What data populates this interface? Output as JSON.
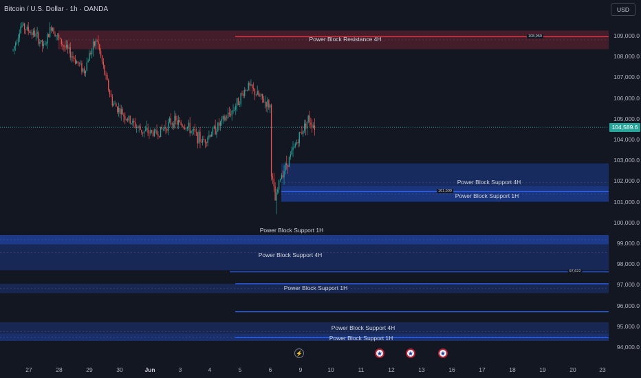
{
  "chart_title": "Bitcoin / U.S. Dollar · 1h · OANDA",
  "currency_button": "USD",
  "current_price": "104,589.6",
  "y_ticks": [
    "109,000.0",
    "108,000.0",
    "107,000.0",
    "106,000.0",
    "105,000.0",
    "104,000.0",
    "103,000.0",
    "102,000.0",
    "101,000.0",
    "100,000.0",
    "99,000.0",
    "98,000.0",
    "97,000.0",
    "96,000.0",
    "95,000.0",
    "94,000.0"
  ],
  "x_ticks": [
    "27",
    "28",
    "29",
    "30",
    "Jun",
    "3",
    "4",
    "5",
    "6",
    "9",
    "10",
    "11",
    "12",
    "13",
    "16",
    "17",
    "18",
    "19",
    "20",
    "23"
  ],
  "zones": [
    {
      "label": "Power Block Resistance  4H",
      "low": 108350,
      "high": 109250
    },
    {
      "label": "Power Block Support 4H",
      "low": 101000,
      "high": 102850
    },
    {
      "label": "Power Block Support 1H",
      "low": 101000,
      "high": 101750
    },
    {
      "label": "Power Block Support 1H",
      "low": 98950,
      "high": 99400
    },
    {
      "label": "Power Block Support 4H",
      "low": 97700,
      "high": 99400
    },
    {
      "label": "Power Block Support 1H",
      "low": 96600,
      "high": 97050
    },
    {
      "label": "Power Block Support 4H",
      "low": 94300,
      "high": 95200
    },
    {
      "label": "Power Block Support 1H",
      "low": 94300,
      "high": 94650
    }
  ],
  "price_lines": [
    {
      "label": "108,950",
      "price": 108950,
      "color": "#f23645"
    },
    {
      "label": "101,500",
      "price": 101500,
      "color": "#2962ff"
    },
    {
      "label": "97,622",
      "price": 97622,
      "color": "#2962ff"
    },
    {
      "label": "",
      "price": 97050,
      "color": "#2962ff"
    },
    {
      "label": "",
      "price": 95700,
      "color": "#2962ff"
    },
    {
      "label": "",
      "price": 94450,
      "color": "#2962ff"
    }
  ],
  "events": [
    "lightning-icon",
    "us-flag-icon",
    "us-flag-icon",
    "us-flag-icon"
  ],
  "chart_data": {
    "type": "candlestick",
    "title": "Bitcoin / U.S. Dollar · 1h · OANDA",
    "ylim": [
      93600,
      109900
    ],
    "up_color": "#26a69a",
    "down_color": "#ef5350",
    "close_path": [
      {
        "t": "May 26 12:00",
        "p": 108300
      },
      {
        "t": "May 26 18:00",
        "p": 109500
      },
      {
        "t": "May 27 06:00",
        "p": 109000
      },
      {
        "t": "May 27 12:00",
        "p": 108400
      },
      {
        "t": "May 27 18:00",
        "p": 109500
      },
      {
        "t": "May 28 00:00",
        "p": 108800
      },
      {
        "t": "May 28 12:00",
        "p": 107900
      },
      {
        "t": "May 28 20:00",
        "p": 107300
      },
      {
        "t": "May 29 00:00",
        "p": 108100
      },
      {
        "t": "May 29 06:00",
        "p": 108800
      },
      {
        "t": "May 29 12:00",
        "p": 107200
      },
      {
        "t": "May 29 18:00",
        "p": 105800
      },
      {
        "t": "May 30 06:00",
        "p": 105000
      },
      {
        "t": "May 30 18:00",
        "p": 104400
      },
      {
        "t": "May 31 06:00",
        "p": 104300
      },
      {
        "t": "May 31 18:00",
        "p": 104900
      },
      {
        "t": "Jun 1 06:00",
        "p": 104600
      },
      {
        "t": "Jun 1 18:00",
        "p": 103900
      },
      {
        "t": "Jun 2 06:00",
        "p": 104600
      },
      {
        "t": "Jun 2 18:00",
        "p": 105400
      },
      {
        "t": "Jun 3 06:00",
        "p": 106600
      },
      {
        "t": "Jun 3 18:00",
        "p": 105900
      },
      {
        "t": "Jun 4 06:00",
        "p": 105600
      },
      {
        "t": "Jun 4 18:00",
        "p": 105100
      },
      {
        "t": "Jun 5 06:00",
        "p": 104800
      },
      {
        "t": "Jun 5 18:00",
        "p": 104500
      },
      {
        "t": "Jun 6 00:00",
        "p": 102800
      },
      {
        "t": "Jun 6 04:00",
        "p": 101000
      },
      {
        "t": "Jun 6 08:00",
        "p": 102200
      },
      {
        "t": "Jun 6 16:00",
        "p": 103200
      },
      {
        "t": "Jun 8 00:00",
        "p": 104300
      },
      {
        "t": "Jun 8 06:00",
        "p": 105000
      },
      {
        "t": "Jun 8 12:00",
        "p": 104590
      }
    ],
    "last_price": 104589.6,
    "low": 100400,
    "high": 109800
  }
}
